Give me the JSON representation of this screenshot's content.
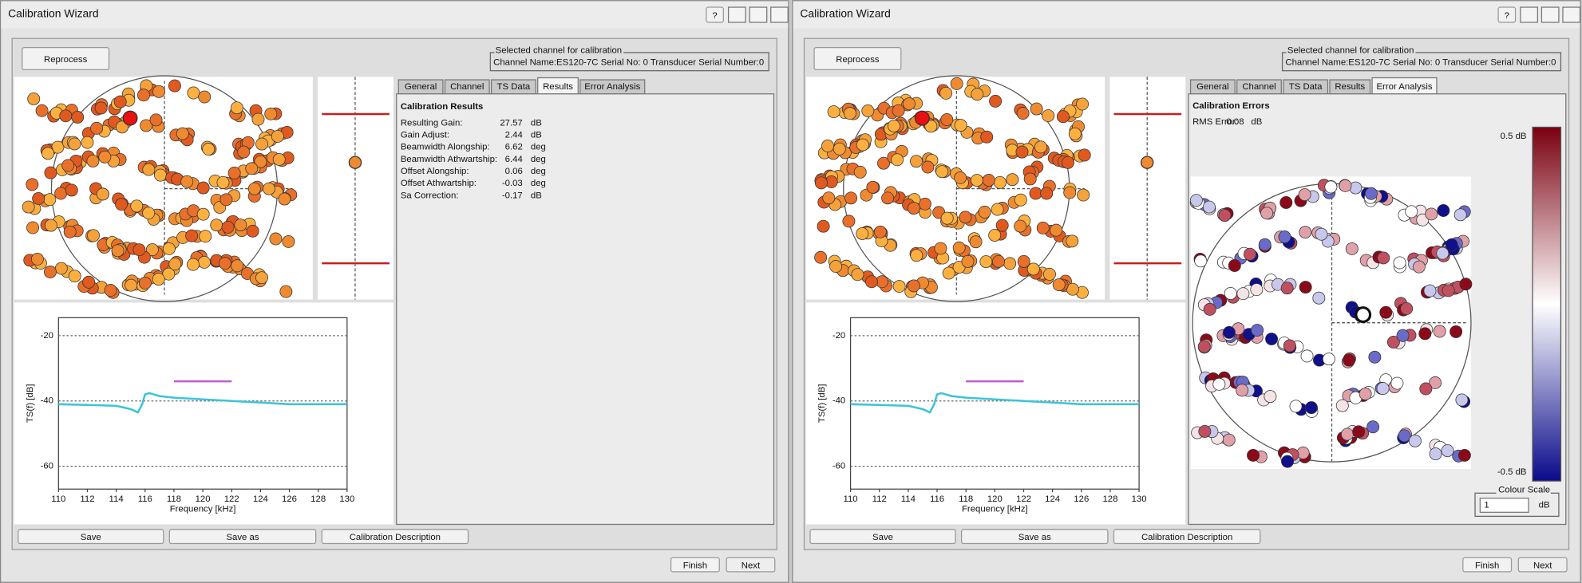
{
  "windows": [
    {
      "title": "Calibration Wizard",
      "help_button": "?",
      "reprocess": "Reprocess",
      "channel_group": {
        "legend": "Selected channel for calibration",
        "text": "Channel Name:ES120-7C Serial No: 0   Transducer Serial Number:0"
      },
      "tabs": [
        "General",
        "Channel",
        "TS Data",
        "Results",
        "Error Analysis"
      ],
      "active_tab": 3,
      "results": {
        "heading": "Calibration Results",
        "rows": [
          [
            "Resulting Gain:",
            "27.57",
            "dB"
          ],
          [
            "Gain Adjust:",
            "2.44",
            "dB"
          ],
          [
            "Beamwidth Alongship:",
            "6.62",
            "deg"
          ],
          [
            "Beamwidth Athwartship:",
            "6.44",
            "deg"
          ],
          [
            "Offset Alongship:",
            "0.06",
            "deg"
          ],
          [
            "Offset Athwartship:",
            "-0.03",
            "deg"
          ],
          [
            "Sa Correction:",
            "-0.17",
            "dB"
          ]
        ]
      },
      "chart": {
        "type": "line",
        "xlabel": "Frequency [kHz]",
        "ylabel": "TS(f) [dB]",
        "xlim": [
          110,
          130
        ],
        "ylim": [
          -14.5,
          -67
        ],
        "xticks": [
          110,
          112,
          114,
          116,
          118,
          120,
          122,
          124,
          126,
          128,
          130
        ],
        "yticks": [
          -20,
          -40,
          -60
        ],
        "grid": true,
        "series": [
          {
            "color": "#3cc4d8",
            "x": [
              110,
              112,
              114,
              115,
              115.5,
              115.8,
              116,
              116.3,
              117,
              118,
              120,
              122,
              124,
              126,
              128,
              130
            ],
            "values": [
              -41,
              -41.2,
              -41.5,
              -42.5,
              -43.5,
              -41,
              -38,
              -37.6,
              -38.5,
              -39,
              -39.5,
              -40,
              -40.5,
              -41,
              -41,
              -41
            ]
          },
          {
            "color": "#c05ad0",
            "x": [
              118,
              122
            ],
            "values": [
              -34,
              -34
            ]
          }
        ]
      },
      "buttons": [
        "Save",
        "Save as",
        "Calibration Description"
      ],
      "footer": [
        "Finish",
        "Next"
      ]
    },
    {
      "title": "Calibration Wizard",
      "help_button": "?",
      "reprocess": "Reprocess",
      "channel_group": {
        "legend": "Selected channel for calibration",
        "text": "Channel Name:ES120-7C Serial No: 0   Transducer Serial Number:0"
      },
      "tabs": [
        "General",
        "Channel",
        "TS Data",
        "Results",
        "Error Analysis"
      ],
      "active_tab": 4,
      "errors": {
        "heading": "Calibration Errors",
        "rms": [
          "RMS Error:",
          "0.08",
          "dB"
        ],
        "scale_max": "0.5 dB",
        "scale_min": "-0.5 dB",
        "colour_scale": {
          "legend": "Colour Scale",
          "value": "1",
          "unit": "dB"
        }
      },
      "chart": {
        "type": "line",
        "xlabel": "Frequency [kHz]",
        "ylabel": "TS(f) [dB]",
        "xlim": [
          110,
          130
        ],
        "ylim": [
          -14.5,
          -67
        ],
        "xticks": [
          110,
          112,
          114,
          116,
          118,
          120,
          122,
          124,
          126,
          128,
          130
        ],
        "yticks": [
          -20,
          -40,
          -60
        ],
        "grid": true,
        "series": [
          {
            "color": "#3cc4d8",
            "x": [
              110,
              112,
              114,
              115,
              115.5,
              115.8,
              116,
              116.3,
              117,
              118,
              120,
              122,
              124,
              126,
              128,
              130
            ],
            "values": [
              -41,
              -41.2,
              -41.5,
              -42.5,
              -43.5,
              -41,
              -38,
              -37.6,
              -38.5,
              -39,
              -39.5,
              -40,
              -40.5,
              -41,
              -41,
              -41
            ]
          },
          {
            "color": "#c05ad0",
            "x": [
              118,
              122
            ],
            "values": [
              -34,
              -34
            ]
          }
        ]
      },
      "buttons": [
        "Save",
        "Save as",
        "Calibration Description"
      ],
      "footer": [
        "Finish",
        "Next"
      ]
    }
  ]
}
